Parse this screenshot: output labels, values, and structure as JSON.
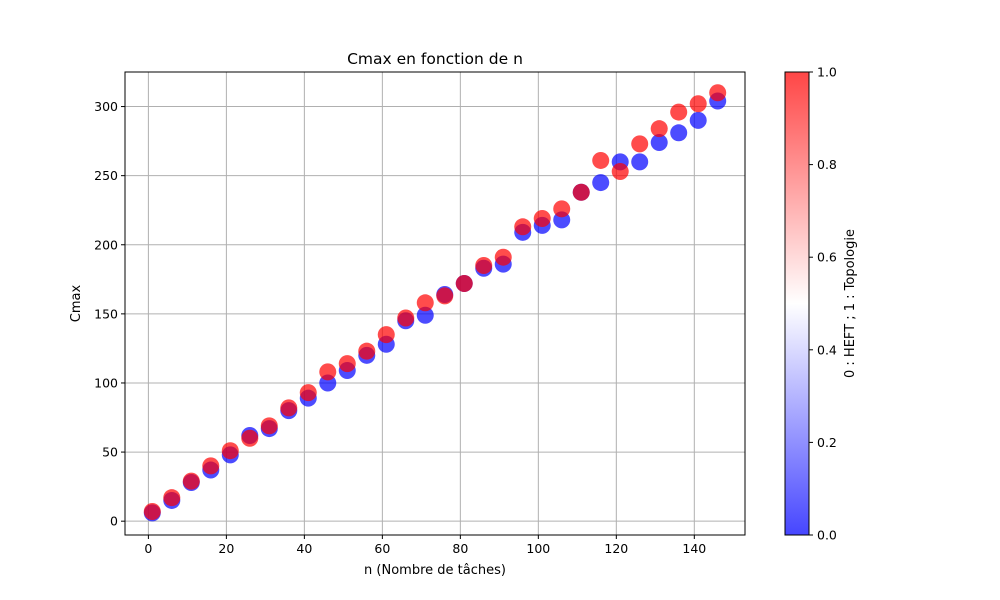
{
  "chart_data": {
    "type": "scatter",
    "title": "Cmax en fonction de n",
    "xlabel": "n (Nombre de tâches)",
    "ylabel": "Cmax",
    "xlim": [
      -6,
      153
    ],
    "ylim": [
      -10,
      325
    ],
    "xticks": [
      0,
      20,
      40,
      60,
      80,
      100,
      120,
      140
    ],
    "yticks": [
      0,
      50,
      100,
      150,
      200,
      250,
      300
    ],
    "grid": true,
    "marker_alpha": 0.7,
    "colorbar": {
      "label": "0 : HEFT ; 1 : Topologie",
      "ticks": [
        "0.0",
        "0.2",
        "0.4",
        "0.6",
        "0.8",
        "1.0"
      ],
      "range": [
        0,
        1
      ],
      "colormap": "bwr",
      "colors": {
        "low": "#0000ff",
        "mid": "#ffffff",
        "high": "#ff0000"
      }
    },
    "series": [
      {
        "c": 0,
        "x": [
          1,
          6,
          11,
          16,
          21,
          26,
          31,
          36,
          41,
          46,
          51,
          56,
          61,
          66,
          71,
          76,
          81,
          86,
          91,
          96,
          101,
          106,
          111,
          116,
          121,
          126,
          131,
          136,
          141,
          146
        ],
        "y": [
          6,
          15,
          28,
          37,
          48,
          62,
          67,
          80,
          89,
          100,
          109,
          120,
          128,
          145,
          149,
          164,
          172,
          183,
          186,
          209,
          214,
          218,
          238,
          245,
          260,
          260,
          274,
          281,
          290,
          304
        ]
      },
      {
        "c": 1,
        "x": [
          1,
          6,
          11,
          16,
          21,
          26,
          31,
          36,
          41,
          46,
          51,
          56,
          61,
          66,
          71,
          76,
          81,
          86,
          91,
          96,
          101,
          106,
          111,
          116,
          121,
          126,
          131,
          136,
          141,
          146
        ],
        "y": [
          7,
          17,
          29,
          40,
          51,
          60,
          69,
          82,
          93,
          108,
          114,
          123,
          135,
          147,
          158,
          163,
          172,
          185,
          191,
          213,
          219,
          226,
          238,
          261,
          253,
          273,
          284,
          296,
          302,
          310
        ]
      }
    ]
  }
}
